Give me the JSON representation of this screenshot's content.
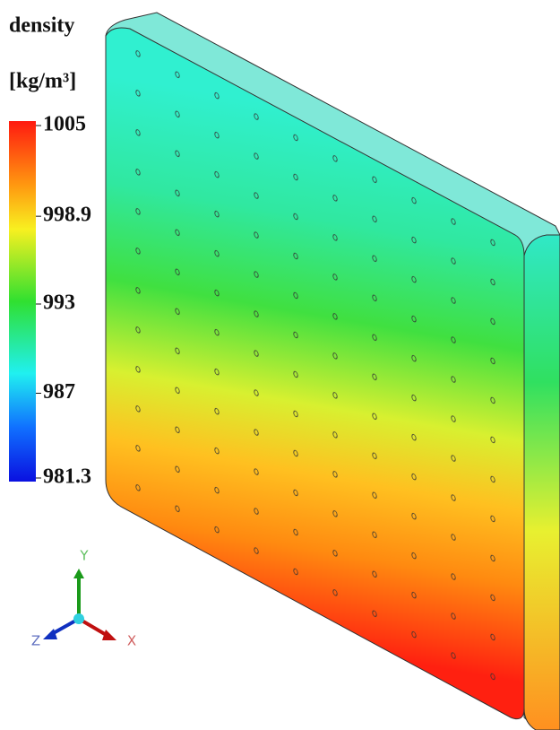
{
  "legend": {
    "title": "density",
    "unit": "[kg/m³]",
    "ticks": [
      1005,
      998.9,
      993,
      987,
      981.3
    ]
  },
  "triad": {
    "y": "Y",
    "z": "Z",
    "x": "X"
  }
}
